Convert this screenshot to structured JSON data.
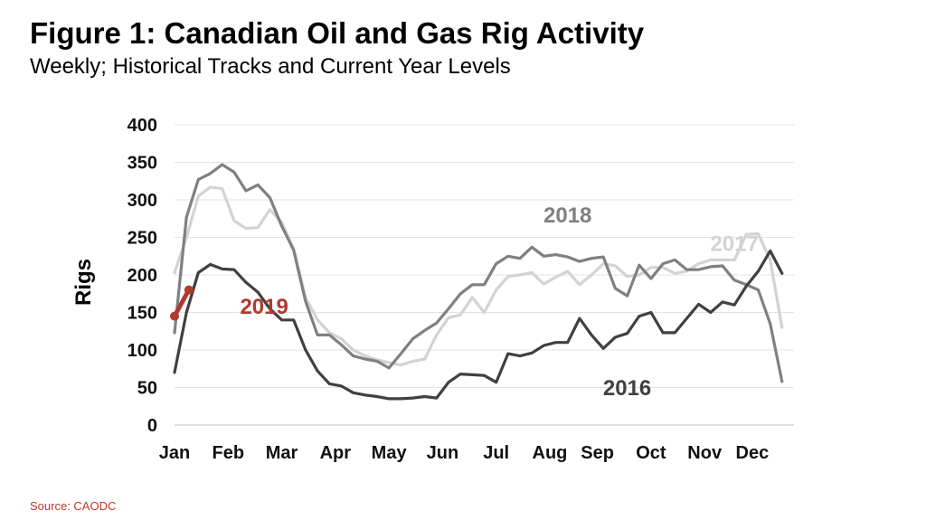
{
  "header": {
    "title": "Figure 1: Canadian Oil and Gas Rig Activity",
    "subtitle": "Weekly; Historical Tracks and Current Year Levels"
  },
  "footer": {
    "source": "Source: CAODC"
  },
  "chart_data": {
    "type": "line",
    "title": "Figure 1: Canadian Oil and Gas Rig Activity",
    "subtitle": "Weekly; Historical Tracks and Current Year Levels",
    "xlabel": "",
    "ylabel": "Rigs",
    "xlim": [
      0,
      52
    ],
    "ylim": [
      0,
      400
    ],
    "yticks": [
      0,
      50,
      100,
      150,
      200,
      250,
      300,
      350,
      400
    ],
    "xtick_labels": [
      "Jan",
      "Feb",
      "Mar",
      "Apr",
      "May",
      "Jun",
      "Jul",
      "Aug",
      "Sep",
      "Oct",
      "Nov",
      "Dec"
    ],
    "xtick_weeks": [
      0,
      4.5,
      9,
      13.5,
      18,
      22.5,
      27,
      31.5,
      35.5,
      40,
      44.5,
      48.5
    ],
    "grid": "horizontal",
    "legend": "none",
    "series": [
      {
        "name": "2017",
        "color": "#d3d3d3",
        "label_value": [
          47,
          232
        ],
        "x": [
          0,
          1,
          2,
          3,
          4,
          5,
          6,
          7,
          8,
          9,
          10,
          11,
          12,
          13,
          14,
          15,
          16,
          17,
          18,
          19,
          20,
          21,
          22,
          23,
          24,
          25,
          26,
          27,
          28,
          29,
          30,
          31,
          32,
          33,
          34,
          35,
          36,
          37,
          38,
          39,
          40,
          41,
          42,
          43,
          44,
          45,
          46,
          47,
          48,
          49,
          50,
          51
        ],
        "values": [
          203,
          250,
          305,
          317,
          315,
          272,
          262,
          263,
          287,
          270,
          235,
          170,
          140,
          123,
          115,
          100,
          92,
          87,
          83,
          80,
          85,
          88,
          120,
          143,
          147,
          170,
          150,
          180,
          198,
          200,
          203,
          188,
          197,
          205,
          187,
          200,
          215,
          212,
          198,
          200,
          210,
          210,
          202,
          205,
          215,
          220,
          220,
          220,
          254,
          255,
          220,
          130
        ]
      },
      {
        "name": "2018",
        "color": "#808080",
        "label_value": [
          33,
          270
        ],
        "x": [
          0,
          1,
          2,
          3,
          4,
          5,
          6,
          7,
          8,
          9,
          10,
          11,
          12,
          13,
          14,
          15,
          16,
          17,
          18,
          19,
          20,
          21,
          22,
          23,
          24,
          25,
          26,
          27,
          28,
          29,
          30,
          31,
          32,
          33,
          34,
          35,
          36,
          37,
          38,
          39,
          40,
          41,
          42,
          43,
          44,
          45,
          46,
          47,
          48,
          49,
          50,
          51
        ],
        "values": [
          123,
          277,
          327,
          335,
          347,
          337,
          312,
          320,
          303,
          265,
          233,
          165,
          120,
          120,
          107,
          92,
          88,
          85,
          76,
          95,
          115,
          126,
          136,
          155,
          175,
          187,
          187,
          215,
          225,
          222,
          237,
          225,
          227,
          224,
          218,
          222,
          224,
          182,
          172,
          213,
          195,
          215,
          220,
          207,
          207,
          211,
          212,
          193,
          187,
          180,
          135,
          58
        ]
      },
      {
        "name": "2016",
        "color": "#404040",
        "label_value": [
          38,
          40
        ],
        "x": [
          0,
          1,
          2,
          3,
          4,
          5,
          6,
          7,
          8,
          9,
          10,
          11,
          12,
          13,
          14,
          15,
          16,
          17,
          18,
          19,
          20,
          21,
          22,
          23,
          24,
          25,
          26,
          27,
          28,
          29,
          30,
          31,
          32,
          33,
          34,
          35,
          36,
          37,
          38,
          39,
          40,
          41,
          42,
          43,
          44,
          45,
          46,
          47,
          48,
          49,
          50,
          51
        ],
        "values": [
          70,
          150,
          203,
          214,
          208,
          207,
          190,
          177,
          155,
          140,
          140,
          100,
          72,
          55,
          52,
          43,
          40,
          38,
          35,
          35,
          36,
          38,
          36,
          57,
          68,
          67,
          66,
          57,
          95,
          92,
          96,
          106,
          110,
          110,
          142,
          120,
          102,
          117,
          122,
          145,
          150,
          123,
          123,
          142,
          161,
          150,
          164,
          160,
          185,
          205,
          232,
          202
        ]
      },
      {
        "name": "2019",
        "color": "#b03a2e",
        "label_value": [
          5.5,
          148
        ],
        "x": [
          0,
          1.2
        ],
        "values": [
          145,
          180
        ]
      }
    ]
  }
}
